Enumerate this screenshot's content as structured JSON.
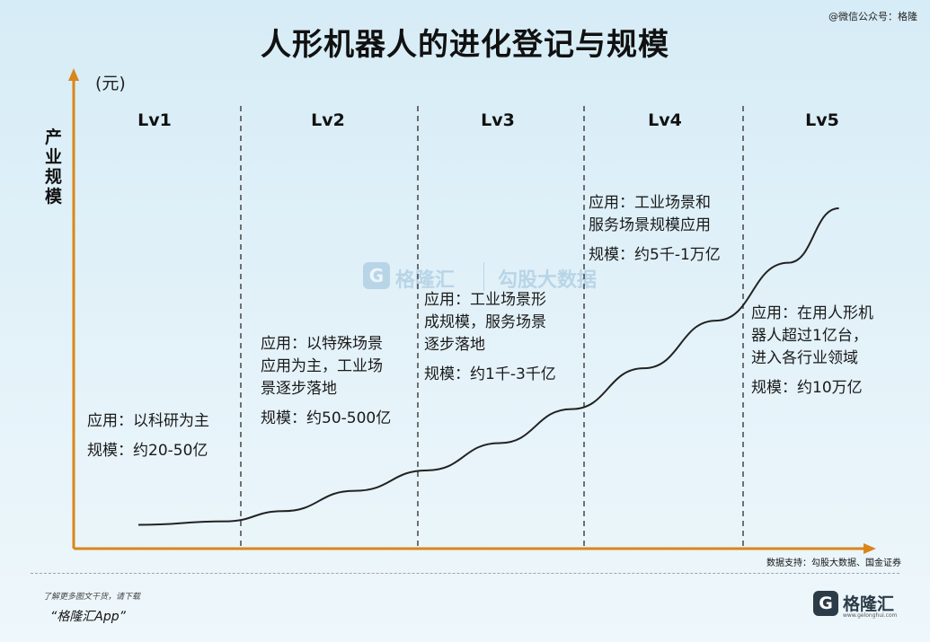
{
  "corner_watermark": "@微信公众号：格隆",
  "center_watermark": {
    "logo_letter": "G",
    "brand_a": "格隆汇",
    "brand_b": "勾股大数据"
  },
  "chart_data": {
    "type": "line",
    "title": "人形机器人的进化登记与规模",
    "ylabel": "产业规模",
    "yunit": "(元)",
    "levels": [
      "Lv1",
      "Lv2",
      "Lv3",
      "Lv4",
      "Lv5"
    ],
    "stages": [
      {
        "application": [
          "应用：以科研为主"
        ],
        "scale": "规模：约20-50亿"
      },
      {
        "application": [
          "应用：以特殊场景",
          "应用为主，工业场",
          "景逐步落地"
        ],
        "scale": "规模：约50-500亿"
      },
      {
        "application": [
          "应用：工业场景形",
          "成规模，服务场景",
          "逐步落地"
        ],
        "scale": "规模：约1千-3千亿"
      },
      {
        "application": [
          "应用：工业场景和",
          "服务场景规模应用"
        ],
        "scale": "规模：约5千-1万亿"
      },
      {
        "application": [
          "应用：在用人形机",
          "器人超过1亿台，",
          "进入各行业领域"
        ],
        "scale": "规模：约10万亿"
      }
    ],
    "curve": {
      "x": [
        0.0,
        0.6,
        1.0,
        1.5,
        2.0,
        2.5,
        3.0,
        3.5,
        4.0,
        4.5,
        4.85
      ],
      "y": [
        0.07,
        0.08,
        0.11,
        0.17,
        0.23,
        0.31,
        0.41,
        0.53,
        0.67,
        0.84,
        1.0
      ]
    },
    "grid": false,
    "legend": "none"
  },
  "source": "数据支持：勾股大数据、国金证券",
  "footer": {
    "note": "了解更多图文干货，请下载",
    "app": "“格隆汇App”"
  },
  "logo": {
    "letter": "G",
    "text": "格隆汇",
    "url": "www.gelonghui.com"
  },
  "colors": {
    "background": "#dcecf5",
    "axis": "#d9871a",
    "curve": "#222222",
    "divider": "#444444"
  }
}
